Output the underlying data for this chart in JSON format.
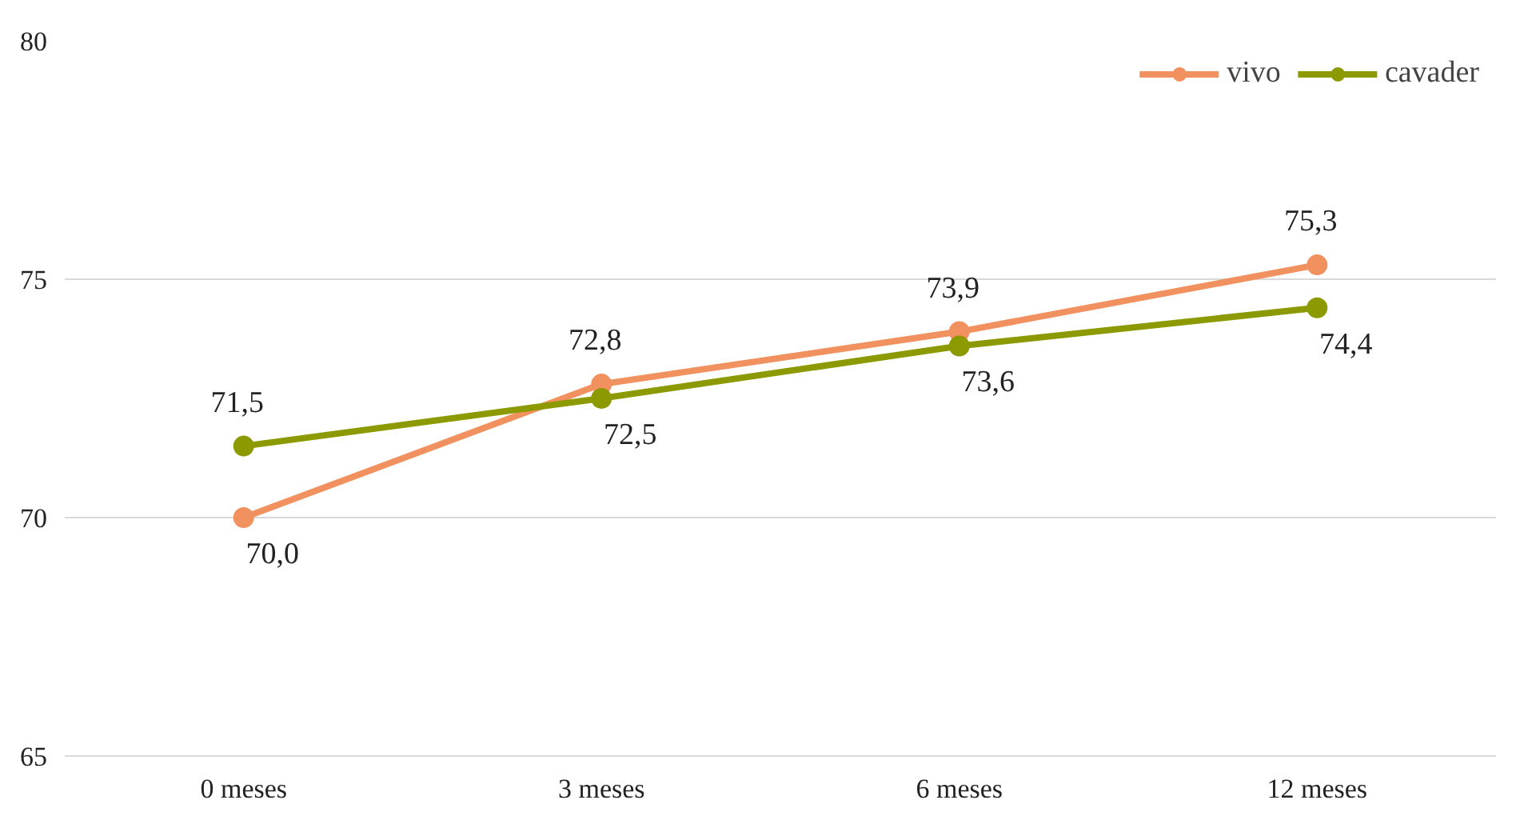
{
  "chart_data": {
    "type": "line",
    "categories": [
      "0 meses",
      "3 meses",
      "6 meses",
      "12 meses"
    ],
    "series": [
      {
        "name": "vivo",
        "color": "#f0915f",
        "values": [
          70.0,
          72.8,
          73.9,
          75.3
        ],
        "value_labels": [
          "70,0",
          "72,8",
          "73,9",
          "75,3"
        ]
      },
      {
        "name": "cavader",
        "color": "#8c9a00",
        "values": [
          71.5,
          72.5,
          73.6,
          74.4
        ],
        "value_labels": [
          "71,5",
          "72,5",
          "73,6",
          "74,4"
        ]
      }
    ],
    "ylim": [
      65,
      80
    ],
    "yticks": [
      65,
      70,
      75,
      80
    ],
    "grid": "y",
    "legend": "top right",
    "marker": "circle",
    "line_style": "solid"
  }
}
